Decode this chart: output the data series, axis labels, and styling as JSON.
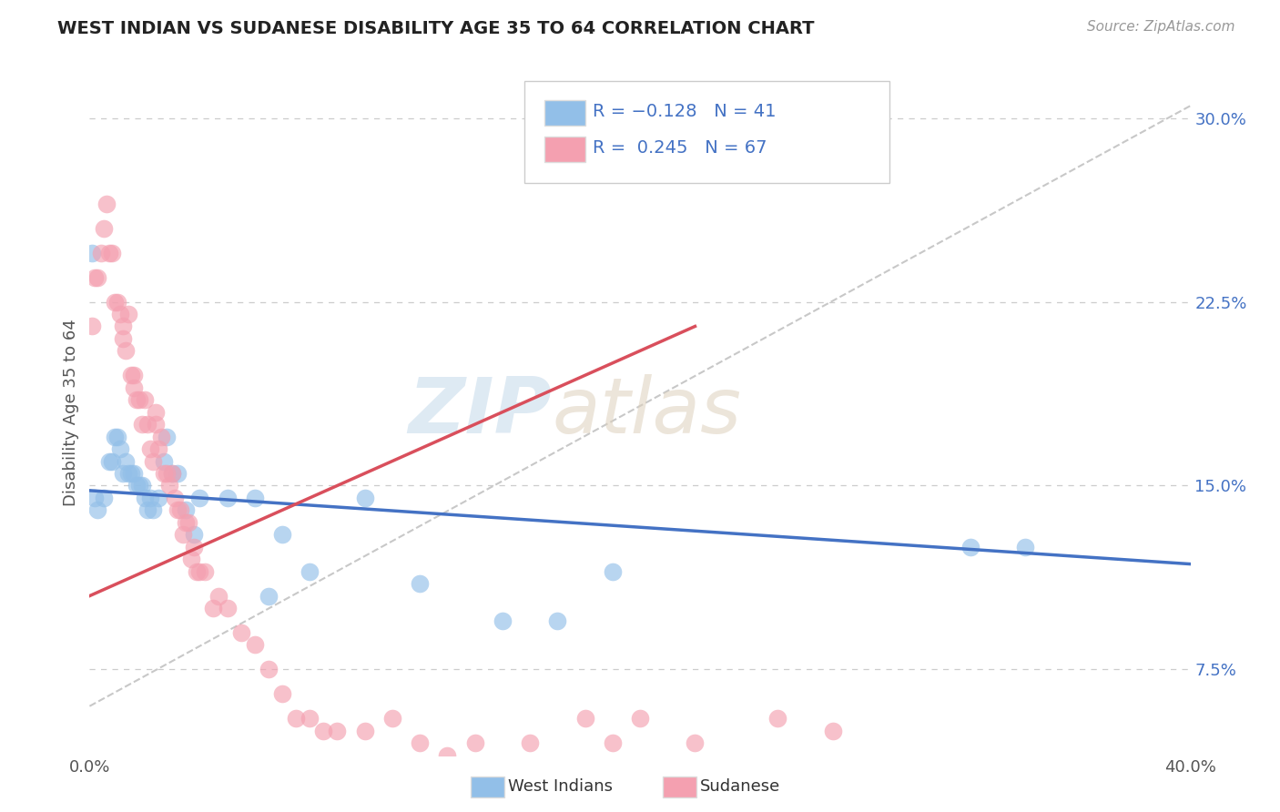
{
  "title": "WEST INDIAN VS SUDANESE DISABILITY AGE 35 TO 64 CORRELATION CHART",
  "source": "Source: ZipAtlas.com",
  "ylabel": "Disability Age 35 to 64",
  "xlim": [
    0.0,
    0.4
  ],
  "ylim": [
    0.04,
    0.32
  ],
  "xtick_positions": [
    0.0,
    0.1,
    0.2,
    0.3,
    0.4
  ],
  "xtick_labels": [
    "0.0%",
    "",
    "",
    "",
    "40.0%"
  ],
  "ytick_vals": [
    0.075,
    0.15,
    0.225,
    0.3
  ],
  "ytick_labels": [
    "7.5%",
    "15.0%",
    "22.5%",
    "30.0%"
  ],
  "west_indian_color": "#92bfe8",
  "sudanese_color": "#f4a0b0",
  "west_indian_line_color": "#4472c4",
  "sudanese_line_color": "#d94f5c",
  "grid_color": "#cccccc",
  "background_color": "#ffffff",
  "wi_r": -0.128,
  "wi_n": 41,
  "su_r": 0.245,
  "su_n": 67,
  "wi_line_x": [
    0.0,
    0.4
  ],
  "wi_line_y": [
    0.148,
    0.118
  ],
  "su_line_x": [
    0.0,
    0.22
  ],
  "su_line_y": [
    0.105,
    0.215
  ],
  "diag_line_x": [
    0.0,
    0.4
  ],
  "diag_line_y": [
    0.06,
    0.305
  ],
  "west_indian_x": [
    0.001,
    0.002,
    0.003,
    0.005,
    0.007,
    0.008,
    0.009,
    0.01,
    0.011,
    0.012,
    0.013,
    0.014,
    0.015,
    0.016,
    0.017,
    0.018,
    0.019,
    0.02,
    0.021,
    0.022,
    0.023,
    0.025,
    0.027,
    0.028,
    0.03,
    0.032,
    0.035,
    0.038,
    0.04,
    0.05,
    0.06,
    0.065,
    0.07,
    0.08,
    0.1,
    0.12,
    0.15,
    0.17,
    0.19,
    0.32,
    0.34
  ],
  "west_indian_y": [
    0.245,
    0.145,
    0.14,
    0.145,
    0.16,
    0.16,
    0.17,
    0.17,
    0.165,
    0.155,
    0.16,
    0.155,
    0.155,
    0.155,
    0.15,
    0.15,
    0.15,
    0.145,
    0.14,
    0.145,
    0.14,
    0.145,
    0.16,
    0.17,
    0.155,
    0.155,
    0.14,
    0.13,
    0.145,
    0.145,
    0.145,
    0.105,
    0.13,
    0.115,
    0.145,
    0.11,
    0.095,
    0.095,
    0.115,
    0.125,
    0.125
  ],
  "sudanese_x": [
    0.001,
    0.002,
    0.003,
    0.004,
    0.005,
    0.006,
    0.007,
    0.008,
    0.009,
    0.01,
    0.011,
    0.012,
    0.012,
    0.013,
    0.014,
    0.015,
    0.016,
    0.016,
    0.017,
    0.018,
    0.019,
    0.02,
    0.021,
    0.022,
    0.023,
    0.024,
    0.024,
    0.025,
    0.026,
    0.027,
    0.028,
    0.029,
    0.03,
    0.031,
    0.032,
    0.033,
    0.034,
    0.035,
    0.036,
    0.037,
    0.038,
    0.039,
    0.04,
    0.042,
    0.045,
    0.047,
    0.05,
    0.055,
    0.06,
    0.065,
    0.07,
    0.075,
    0.08,
    0.085,
    0.09,
    0.1,
    0.11,
    0.12,
    0.13,
    0.14,
    0.16,
    0.18,
    0.19,
    0.2,
    0.22,
    0.25,
    0.27
  ],
  "sudanese_y": [
    0.215,
    0.235,
    0.235,
    0.245,
    0.255,
    0.265,
    0.245,
    0.245,
    0.225,
    0.225,
    0.22,
    0.21,
    0.215,
    0.205,
    0.22,
    0.195,
    0.19,
    0.195,
    0.185,
    0.185,
    0.175,
    0.185,
    0.175,
    0.165,
    0.16,
    0.175,
    0.18,
    0.165,
    0.17,
    0.155,
    0.155,
    0.15,
    0.155,
    0.145,
    0.14,
    0.14,
    0.13,
    0.135,
    0.135,
    0.12,
    0.125,
    0.115,
    0.115,
    0.115,
    0.1,
    0.105,
    0.1,
    0.09,
    0.085,
    0.075,
    0.065,
    0.055,
    0.055,
    0.05,
    0.05,
    0.05,
    0.055,
    0.045,
    0.04,
    0.045,
    0.045,
    0.055,
    0.045,
    0.055,
    0.045,
    0.055,
    0.05
  ]
}
